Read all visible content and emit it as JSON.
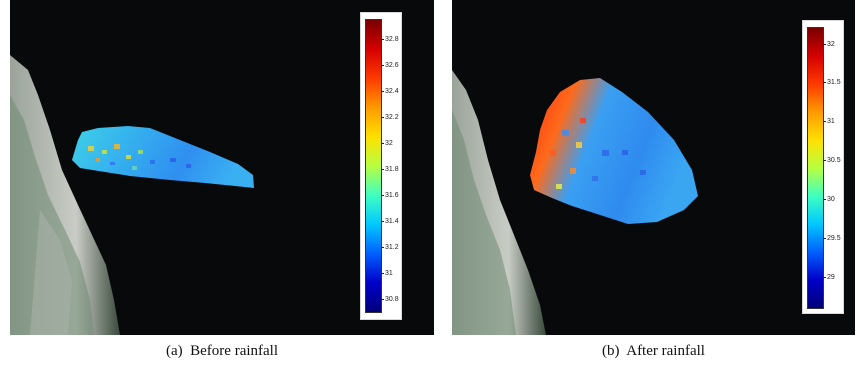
{
  "panels": [
    {
      "caption_tag": "(a)",
      "caption_text": "Before rainfall",
      "colorbar": {
        "min": 30.7,
        "max": 32.95,
        "ticks": [
          "32.8",
          "32.6",
          "32.4",
          "32.2",
          "32",
          "31.8",
          "31.6",
          "31.4",
          "31.2",
          "31",
          "30.8"
        ]
      }
    },
    {
      "caption_tag": "(b)",
      "caption_text": "After rainfall",
      "colorbar": {
        "min": 28.6,
        "max": 32.2,
        "ticks": [
          "32",
          "31.5",
          "31",
          "30.5",
          "30",
          "29.5",
          "29"
        ]
      }
    }
  ],
  "colormap": "jet",
  "colors": {
    "background": "#07090b",
    "coastline": "#b8bdb6"
  }
}
